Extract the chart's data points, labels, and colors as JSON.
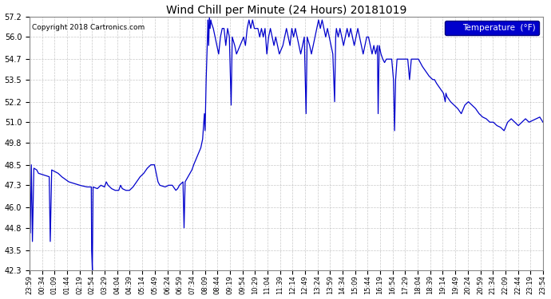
{
  "title": "Wind Chill per Minute (24 Hours) 20181019",
  "copyright": "Copyright 2018 Cartronics.com",
  "legend_label": "Temperature  (°F)",
  "line_color": "#0000cc",
  "background_color": "#ffffff",
  "grid_color": "#bbbbbb",
  "legend_bg": "#0000cc",
  "legend_fg": "#ffffff",
  "ylim": [
    42.3,
    57.2
  ],
  "yticks": [
    42.3,
    43.5,
    44.8,
    46.0,
    47.3,
    48.5,
    49.8,
    51.0,
    52.2,
    53.5,
    54.7,
    56.0,
    57.2
  ],
  "xtick_labels": [
    "23:59",
    "00:34",
    "01:09",
    "01:44",
    "02:19",
    "02:54",
    "03:29",
    "04:04",
    "04:39",
    "05:14",
    "05:49",
    "06:24",
    "06:59",
    "07:34",
    "08:09",
    "08:44",
    "09:19",
    "09:54",
    "10:29",
    "11:04",
    "11:39",
    "12:14",
    "12:49",
    "13:24",
    "13:59",
    "14:34",
    "15:09",
    "15:44",
    "16:19",
    "16:54",
    "17:29",
    "18:04",
    "18:39",
    "19:14",
    "19:49",
    "20:24",
    "20:59",
    "21:34",
    "22:09",
    "22:44",
    "23:19",
    "23:54"
  ],
  "figsize": [
    6.9,
    3.75
  ],
  "dpi": 100
}
